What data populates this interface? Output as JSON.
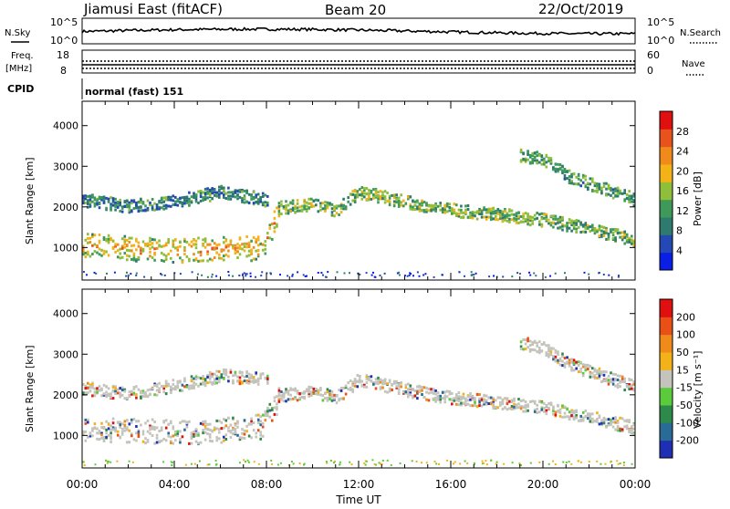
{
  "header": {
    "station": "Jiamusi East (fitACF)",
    "beam": "Beam 20",
    "date": "22/Oct/2019"
  },
  "panels": {
    "nsky_label": "N.Sky",
    "nsky_ticks": [
      "10^5",
      "10^0"
    ],
    "nsearch_label": "N.Search",
    "nsearch_ticks": [
      "10^5",
      "10^0"
    ],
    "freq_label": "Freq.",
    "freq_unit": "[MHz]",
    "freq_ticks": [
      "18",
      "8"
    ],
    "nave_label": "Nave",
    "nave_ticks": [
      "60",
      "0"
    ],
    "cpid_label": "CPID",
    "cpid_value": "normal (fast) 151"
  },
  "chart_data": [
    {
      "type": "heatmap",
      "title": "",
      "xlabel": "",
      "ylabel": "Slant Range [km]",
      "x_ticks": [
        "00:00",
        "04:00",
        "08:00",
        "12:00",
        "16:00",
        "20:00",
        "00:00"
      ],
      "y_ticks": [
        1000,
        2000,
        3000,
        4000
      ],
      "ylim": [
        200,
        4600
      ],
      "colorbar": {
        "label": "Power [dB]",
        "ticks": [
          "4",
          "8",
          "12",
          "16",
          "20",
          "24",
          "28"
        ],
        "colors": [
          "#0a1ee6",
          "#2448b4",
          "#2e7a6e",
          "#3f9a5a",
          "#8fbf3a",
          "#f2b218",
          "#f08a1a",
          "#e8521c",
          "#e01010"
        ]
      },
      "echo_bands": [
        {
          "name": "",
          "x": [
            0,
            2,
            4,
            6,
            7.8,
            8.5
          ],
          "y": [
            1100,
            1000,
            950,
            1000,
            1000,
            1900
          ],
          "value": 20
        },
        {
          "name": "",
          "x": [
            0,
            2,
            4,
            6,
            8
          ],
          "y": [
            2200,
            2050,
            2150,
            2400,
            2200
          ],
          "value": 8
        },
        {
          "name": "",
          "x": [
            8.5,
            10,
            11,
            12,
            14,
            16,
            18,
            20,
            22,
            24
          ],
          "y": [
            2000,
            2100,
            1950,
            2400,
            2150,
            1950,
            1850,
            1700,
            1500,
            1200
          ],
          "value": 12
        },
        {
          "name": "",
          "x": [
            19,
            20,
            21,
            22,
            23,
            24
          ],
          "y": [
            3300,
            3200,
            2800,
            2600,
            2400,
            2200
          ],
          "value": 10
        }
      ]
    },
    {
      "type": "heatmap",
      "title": "",
      "xlabel": "Time UT",
      "ylabel": "Slant Range [km]",
      "x_ticks": [
        "00:00",
        "04:00",
        "08:00",
        "12:00",
        "16:00",
        "20:00",
        "00:00"
      ],
      "y_ticks": [
        1000,
        2000,
        3000,
        4000
      ],
      "ylim": [
        200,
        4600
      ],
      "colorbar": {
        "label": "Velocity [m s⁻¹]",
        "ticks": [
          "200",
          "100",
          "50",
          "15",
          "-15",
          "-50",
          "-100",
          "-200"
        ],
        "colors": [
          "#1e2fb4",
          "#2a6a96",
          "#2e8a4a",
          "#5acb3a",
          "#c4c4bc",
          "#f2b218",
          "#f08a1a",
          "#e85018",
          "#e01010"
        ]
      },
      "echo_bands": [
        {
          "name": "",
          "x": [
            0,
            2,
            4,
            6,
            7.8,
            8.5
          ],
          "y": [
            1200,
            1150,
            1100,
            1150,
            1250,
            1900
          ],
          "value": 0
        },
        {
          "name": "",
          "x": [
            0,
            2,
            4,
            6,
            8
          ],
          "y": [
            2200,
            2050,
            2250,
            2500,
            2400
          ],
          "value": -30
        },
        {
          "name": "",
          "x": [
            8.5,
            10,
            11,
            12,
            14,
            16,
            18,
            20,
            22,
            24
          ],
          "y": [
            2000,
            2100,
            1950,
            2400,
            2150,
            1950,
            1850,
            1700,
            1500,
            1200
          ],
          "value": 0
        },
        {
          "name": "",
          "x": [
            19,
            20,
            21,
            22,
            23,
            24
          ],
          "y": [
            3300,
            3200,
            2800,
            2600,
            2400,
            2200
          ],
          "value": 0
        }
      ]
    }
  ]
}
